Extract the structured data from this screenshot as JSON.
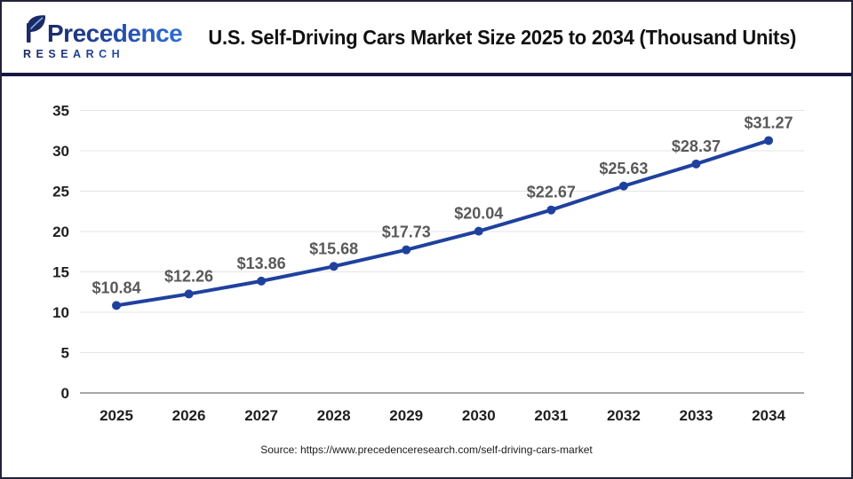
{
  "header": {
    "logo": {
      "brand_top": "Precedence",
      "brand_bottom": "RESEARCH",
      "leaf_icon": "leaf-logo-icon",
      "brand_color_dark": "#1c2a66",
      "brand_color_light": "#2f6fd6"
    },
    "title": "U.S. Self-Driving Cars Market Size 2025 to 2034 (Thousand Units)"
  },
  "footer": {
    "source": "Source: https://www.precedenceresearch.com/self-driving-cars-market"
  },
  "chart_data": {
    "type": "line",
    "title": "U.S. Self-Driving Cars Market Size 2025 to 2034 (Thousand Units)",
    "categories": [
      "2025",
      "2026",
      "2027",
      "2028",
      "2029",
      "2030",
      "2031",
      "2032",
      "2033",
      "2034"
    ],
    "values": [
      10.84,
      12.26,
      13.86,
      15.68,
      17.73,
      20.04,
      22.67,
      25.63,
      28.37,
      31.27
    ],
    "data_labels": [
      "$10.84",
      "$12.26",
      "$13.86",
      "$15.68",
      "$17.73",
      "$20.04",
      "$22.67",
      "$25.63",
      "$28.37",
      "$31.27"
    ],
    "yticks": [
      0,
      5,
      10,
      15,
      20,
      25,
      30,
      35
    ],
    "ylim": [
      0,
      35
    ],
    "xlabel": "",
    "ylabel": "",
    "grid": true,
    "legend": false,
    "line_color": "#1f419e",
    "marker_color": "#1f419e",
    "data_label_color": "#595959",
    "grid_color": "#e5e5e5",
    "axis_color": "#a8a8a8",
    "divider_color": "#171744"
  }
}
